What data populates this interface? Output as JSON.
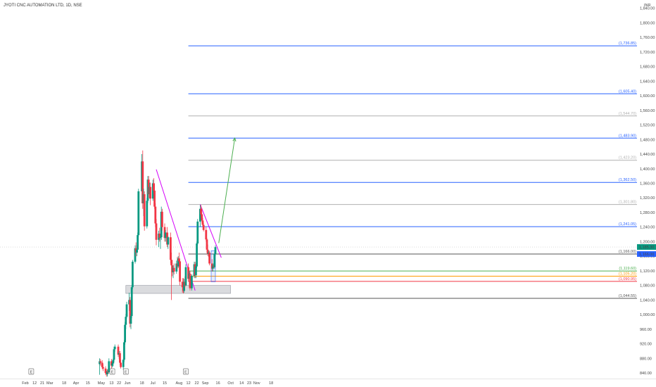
{
  "chart_data": {
    "type": "candlestick",
    "title": "JYOTI CNC AUTOMATION LTD, 1D, NSE",
    "currency": "INR",
    "y_axis": {
      "ticks": [
        "840.00",
        "880.00",
        "920.00",
        "960.00",
        "1,000.00",
        "1,040.00",
        "1,080.00",
        "1,120.00",
        "1,160.00",
        "1,200.00",
        "1,240.00",
        "1,280.00",
        "1,320.00",
        "1,360.00",
        "1,400.00",
        "1,440.00",
        "1,480.00",
        "1,520.00",
        "1,560.00",
        "1,600.00",
        "1,640.00",
        "1,680.00",
        "1,720.00",
        "1,760.00",
        "1,800.00",
        "1,840.00"
      ]
    },
    "x_axis": {
      "ticks": [
        "Feb",
        "12",
        "21",
        "Mar",
        "18",
        "Apr",
        "15",
        "May",
        "13",
        "22",
        "Jun",
        "18",
        "Jul",
        "15",
        "Aug",
        "12",
        "22",
        "Sep",
        "16",
        "Oct",
        "14",
        "23",
        "Nov",
        "18"
      ],
      "event_markers": [
        "E",
        "E",
        "E",
        "E"
      ]
    },
    "current_price": {
      "label": "1,185.30",
      "value": 1185.3,
      "color": "#089981"
    },
    "level_1166": {
      "label": "1,166.00",
      "value": 1166.0,
      "color": "#2962ff"
    },
    "fib_levels": [
      {
        "value": 1736.85,
        "label": "(1,736.85)",
        "color": "#2962ff"
      },
      {
        "value": 1605.4,
        "label": "(1,605.40)",
        "color": "#2962ff"
      },
      {
        "value": 1544.7,
        "label": "(1,544.70)",
        "color": "#b0b0b0"
      },
      {
        "value": 1483.9,
        "label": "(1,483.90)",
        "color": "#2962ff"
      },
      {
        "value": 1423.2,
        "label": "(1,423.20)",
        "color": "#b0b0b0"
      },
      {
        "value": 1362.5,
        "label": "(1,362.50)",
        "color": "#2962ff"
      },
      {
        "value": 1301.8,
        "label": "(1,301.80)",
        "color": "#b0b0b0"
      },
      {
        "value": 1241.05,
        "label": "(1,241.05)",
        "color": "#2962ff"
      },
      {
        "value": 1166.0,
        "label": "(1,166.00)",
        "color": "#555555"
      },
      {
        "value": 1119.6,
        "label": "(1,119.60)",
        "color": "#4caf50"
      },
      {
        "value": 1105.2,
        "label": "(1,105.20)",
        "color": "#ff9800"
      },
      {
        "value": 1090.95,
        "label": "(1,090.95)",
        "color": "#f23645"
      },
      {
        "value": 1044.55,
        "label": "(1,044.55)",
        "color": "#555555"
      }
    ],
    "candles": [
      {
        "date": "2024-04-29",
        "o": 864,
        "h": 880,
        "l": 835,
        "c": 872
      },
      {
        "date": "2024-04-30",
        "o": 872,
        "h": 878,
        "l": 860,
        "c": 868
      },
      {
        "date": "2024-05-02",
        "o": 868,
        "h": 875,
        "l": 850,
        "c": 856
      },
      {
        "date": "2024-05-03",
        "o": 856,
        "h": 864,
        "l": 845,
        "c": 852
      },
      {
        "date": "2024-05-06",
        "o": 852,
        "h": 858,
        "l": 835,
        "c": 840
      },
      {
        "date": "2024-05-07",
        "o": 840,
        "h": 850,
        "l": 830,
        "c": 836
      },
      {
        "date": "2024-05-08",
        "o": 836,
        "h": 850,
        "l": 830,
        "c": 845
      },
      {
        "date": "2024-05-09",
        "o": 845,
        "h": 852,
        "l": 838,
        "c": 842
      },
      {
        "date": "2024-05-10",
        "o": 842,
        "h": 880,
        "l": 838,
        "c": 872
      },
      {
        "date": "2024-05-13",
        "o": 872,
        "h": 878,
        "l": 850,
        "c": 860
      },
      {
        "date": "2024-05-14",
        "o": 860,
        "h": 870,
        "l": 855,
        "c": 866
      },
      {
        "date": "2024-05-15",
        "o": 866,
        "h": 880,
        "l": 858,
        "c": 876
      },
      {
        "date": "2024-05-16",
        "o": 876,
        "h": 912,
        "l": 870,
        "c": 905
      },
      {
        "date": "2024-05-17",
        "o": 905,
        "h": 918,
        "l": 898,
        "c": 912
      },
      {
        "date": "2024-05-21",
        "o": 912,
        "h": 918,
        "l": 884,
        "c": 890
      },
      {
        "date": "2024-05-22",
        "o": 890,
        "h": 900,
        "l": 878,
        "c": 894
      },
      {
        "date": "2024-05-23",
        "o": 894,
        "h": 900,
        "l": 862,
        "c": 868
      },
      {
        "date": "2024-05-24",
        "o": 868,
        "h": 876,
        "l": 852,
        "c": 856
      },
      {
        "date": "2024-05-27",
        "o": 856,
        "h": 880,
        "l": 848,
        "c": 876
      },
      {
        "date": "2024-05-28",
        "o": 876,
        "h": 930,
        "l": 870,
        "c": 924
      },
      {
        "date": "2024-05-29",
        "o": 924,
        "h": 980,
        "l": 918,
        "c": 972
      },
      {
        "date": "2024-05-30",
        "o": 972,
        "h": 1002,
        "l": 960,
        "c": 994
      },
      {
        "date": "2024-05-31",
        "o": 994,
        "h": 1035,
        "l": 990,
        "c": 1028
      },
      {
        "date": "2024-06-03",
        "o": 1028,
        "h": 1060,
        "l": 1010,
        "c": 1040
      },
      {
        "date": "2024-06-04",
        "o": 1040,
        "h": 1048,
        "l": 965,
        "c": 975
      },
      {
        "date": "2024-06-05",
        "o": 975,
        "h": 1002,
        "l": 960,
        "c": 996
      },
      {
        "date": "2024-06-06",
        "o": 996,
        "h": 1080,
        "l": 990,
        "c": 1075
      },
      {
        "date": "2024-06-07",
        "o": 1075,
        "h": 1150,
        "l": 1070,
        "c": 1145
      },
      {
        "date": "2024-06-10",
        "o": 1145,
        "h": 1190,
        "l": 1140,
        "c": 1182
      },
      {
        "date": "2024-06-11",
        "o": 1182,
        "h": 1198,
        "l": 1160,
        "c": 1170
      },
      {
        "date": "2024-06-12",
        "o": 1170,
        "h": 1190,
        "l": 1160,
        "c": 1178
      },
      {
        "date": "2024-06-13",
        "o": 1178,
        "h": 1225,
        "l": 1170,
        "c": 1218
      },
      {
        "date": "2024-06-14",
        "o": 1218,
        "h": 1345,
        "l": 1214,
        "c": 1338
      },
      {
        "date": "2024-06-18",
        "o": 1338,
        "h": 1440,
        "l": 1305,
        "c": 1420
      },
      {
        "date": "2024-06-19",
        "o": 1420,
        "h": 1450,
        "l": 1290,
        "c": 1305
      },
      {
        "date": "2024-06-20",
        "o": 1305,
        "h": 1345,
        "l": 1270,
        "c": 1330
      },
      {
        "date": "2024-06-21",
        "o": 1330,
        "h": 1338,
        "l": 1230,
        "c": 1242
      },
      {
        "date": "2024-06-24",
        "o": 1242,
        "h": 1320,
        "l": 1236,
        "c": 1312
      },
      {
        "date": "2024-06-25",
        "o": 1312,
        "h": 1380,
        "l": 1306,
        "c": 1370
      },
      {
        "date": "2024-06-26",
        "o": 1370,
        "h": 1380,
        "l": 1320,
        "c": 1330
      },
      {
        "date": "2024-06-27",
        "o": 1330,
        "h": 1362,
        "l": 1318,
        "c": 1350
      },
      {
        "date": "2024-06-28",
        "o": 1350,
        "h": 1362,
        "l": 1300,
        "c": 1318
      },
      {
        "date": "2024-07-01",
        "o": 1318,
        "h": 1370,
        "l": 1312,
        "c": 1360
      },
      {
        "date": "2024-07-02",
        "o": 1360,
        "h": 1374,
        "l": 1330,
        "c": 1340
      },
      {
        "date": "2024-07-03",
        "o": 1340,
        "h": 1360,
        "l": 1290,
        "c": 1296
      },
      {
        "date": "2024-07-04",
        "o": 1296,
        "h": 1305,
        "l": 1240,
        "c": 1250
      },
      {
        "date": "2024-07-05",
        "o": 1250,
        "h": 1262,
        "l": 1190,
        "c": 1205
      },
      {
        "date": "2024-07-08",
        "o": 1205,
        "h": 1230,
        "l": 1185,
        "c": 1222
      },
      {
        "date": "2024-07-09",
        "o": 1222,
        "h": 1238,
        "l": 1200,
        "c": 1210
      },
      {
        "date": "2024-07-10",
        "o": 1210,
        "h": 1222,
        "l": 1180,
        "c": 1212
      },
      {
        "date": "2024-07-11",
        "o": 1212,
        "h": 1296,
        "l": 1205,
        "c": 1282
      },
      {
        "date": "2024-07-12",
        "o": 1282,
        "h": 1290,
        "l": 1230,
        "c": 1240
      },
      {
        "date": "2024-07-15",
        "o": 1240,
        "h": 1250,
        "l": 1200,
        "c": 1210
      },
      {
        "date": "2024-07-16",
        "o": 1210,
        "h": 1232,
        "l": 1200,
        "c": 1225
      },
      {
        "date": "2024-07-18",
        "o": 1225,
        "h": 1240,
        "l": 1185,
        "c": 1192
      },
      {
        "date": "2024-07-19",
        "o": 1192,
        "h": 1215,
        "l": 1180,
        "c": 1212
      },
      {
        "date": "2024-07-22",
        "o": 1212,
        "h": 1225,
        "l": 1140,
        "c": 1150
      },
      {
        "date": "2024-07-23",
        "o": 1150,
        "h": 1170,
        "l": 1040,
        "c": 1135
      },
      {
        "date": "2024-07-24",
        "o": 1135,
        "h": 1150,
        "l": 1105,
        "c": 1116
      },
      {
        "date": "2024-07-25",
        "o": 1116,
        "h": 1135,
        "l": 1100,
        "c": 1128
      },
      {
        "date": "2024-07-26",
        "o": 1128,
        "h": 1140,
        "l": 1110,
        "c": 1118
      },
      {
        "date": "2024-07-29",
        "o": 1118,
        "h": 1148,
        "l": 1112,
        "c": 1140
      },
      {
        "date": "2024-07-30",
        "o": 1140,
        "h": 1158,
        "l": 1125,
        "c": 1132
      },
      {
        "date": "2024-07-31",
        "o": 1132,
        "h": 1160,
        "l": 1128,
        "c": 1154
      },
      {
        "date": "2024-08-01",
        "o": 1154,
        "h": 1170,
        "l": 1140,
        "c": 1146
      },
      {
        "date": "2024-08-02",
        "o": 1146,
        "h": 1150,
        "l": 1080,
        "c": 1090
      },
      {
        "date": "2024-08-05",
        "o": 1090,
        "h": 1100,
        "l": 1060,
        "c": 1075
      },
      {
        "date": "2024-08-06",
        "o": 1075,
        "h": 1100,
        "l": 1058,
        "c": 1065
      },
      {
        "date": "2024-08-07",
        "o": 1065,
        "h": 1098,
        "l": 1060,
        "c": 1090
      },
      {
        "date": "2024-08-08",
        "o": 1090,
        "h": 1105,
        "l": 1075,
        "c": 1080
      },
      {
        "date": "2024-08-09",
        "o": 1080,
        "h": 1138,
        "l": 1078,
        "c": 1130
      },
      {
        "date": "2024-08-12",
        "o": 1130,
        "h": 1140,
        "l": 1090,
        "c": 1098
      },
      {
        "date": "2024-08-13",
        "o": 1098,
        "h": 1120,
        "l": 1075,
        "c": 1112
      },
      {
        "date": "2024-08-14",
        "o": 1112,
        "h": 1120,
        "l": 1066,
        "c": 1072
      },
      {
        "date": "2024-08-16",
        "o": 1072,
        "h": 1110,
        "l": 1066,
        "c": 1106
      },
      {
        "date": "2024-08-19",
        "o": 1106,
        "h": 1145,
        "l": 1100,
        "c": 1138
      },
      {
        "date": "2024-08-20",
        "o": 1138,
        "h": 1145,
        "l": 1100,
        "c": 1108
      },
      {
        "date": "2024-08-21",
        "o": 1108,
        "h": 1140,
        "l": 1100,
        "c": 1132
      },
      {
        "date": "2024-08-22",
        "o": 1132,
        "h": 1200,
        "l": 1128,
        "c": 1195
      },
      {
        "date": "2024-08-23",
        "o": 1195,
        "h": 1262,
        "l": 1190,
        "c": 1255
      },
      {
        "date": "2024-08-26",
        "o": 1255,
        "h": 1300,
        "l": 1240,
        "c": 1290
      },
      {
        "date": "2024-08-27",
        "o": 1290,
        "h": 1300,
        "l": 1265,
        "c": 1275
      },
      {
        "date": "2024-08-28",
        "o": 1275,
        "h": 1292,
        "l": 1250,
        "c": 1258
      },
      {
        "date": "2024-08-29",
        "o": 1258,
        "h": 1265,
        "l": 1240,
        "c": 1246
      },
      {
        "date": "2024-08-30",
        "o": 1246,
        "h": 1252,
        "l": 1228,
        "c": 1232
      },
      {
        "date": "2024-09-02",
        "o": 1232,
        "h": 1240,
        "l": 1200,
        "c": 1206
      },
      {
        "date": "2024-09-03",
        "o": 1206,
        "h": 1210,
        "l": 1170,
        "c": 1178
      },
      {
        "date": "2024-09-04",
        "o": 1178,
        "h": 1192,
        "l": 1160,
        "c": 1166
      },
      {
        "date": "2024-09-05",
        "o": 1166,
        "h": 1175,
        "l": 1158,
        "c": 1170
      },
      {
        "date": "2024-09-06",
        "o": 1170,
        "h": 1175,
        "l": 1135,
        "c": 1140
      },
      {
        "date": "2024-09-09",
        "o": 1140,
        "h": 1152,
        "l": 1118,
        "c": 1126
      },
      {
        "date": "2024-09-10",
        "o": 1126,
        "h": 1140,
        "l": 1118,
        "c": 1135
      },
      {
        "date": "2024-09-11",
        "o": 1135,
        "h": 1140,
        "l": 1128,
        "c": 1130
      },
      {
        "date": "2024-09-12",
        "o": 1130,
        "h": 1172,
        "l": 1126,
        "c": 1166
      },
      {
        "date": "2024-09-13",
        "o": 1166,
        "h": 1190,
        "l": 1160,
        "c": 1185
      }
    ]
  }
}
